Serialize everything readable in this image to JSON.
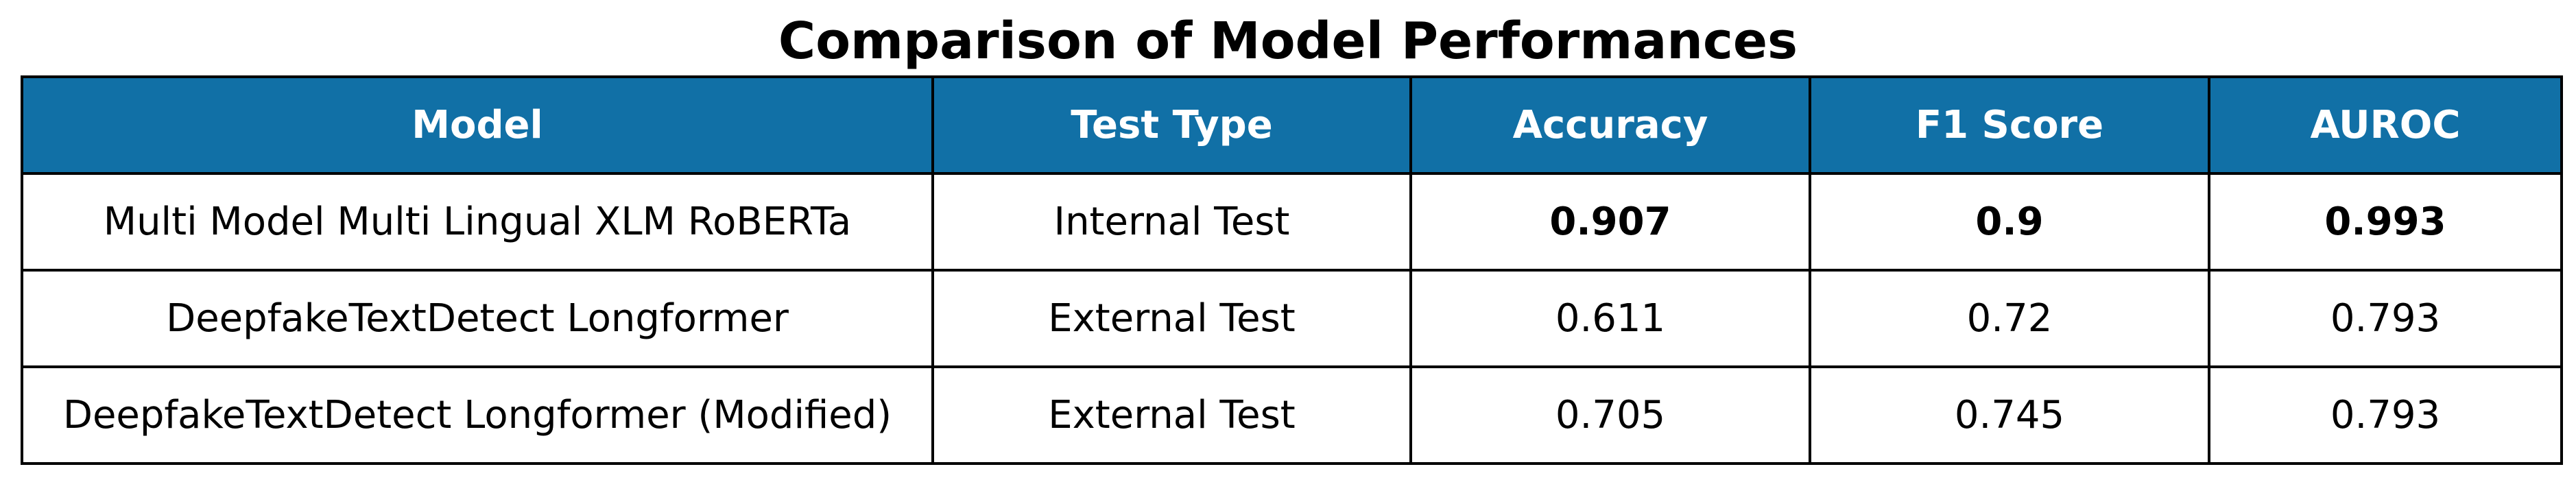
{
  "chart_data": {
    "type": "table",
    "title": "Comparison of Model Performances",
    "header_color": "#1170a6",
    "columns": [
      "Model",
      "Test Type",
      "Accuracy",
      "F1 Score",
      "AUROC"
    ],
    "rows": [
      [
        "Multi Model Multi Lingual XLM RoBERTa",
        "Internal Test",
        "0.907",
        "0.9",
        "0.993"
      ],
      [
        "DeepfakeTextDetect Longformer",
        "External Test",
        "0.611",
        "0.72",
        "0.793"
      ],
      [
        "DeepfakeTextDetect Longformer (Modified)",
        "External Test",
        "0.705",
        "0.745",
        "0.793"
      ]
    ],
    "bold_row": 0,
    "bold_columns": [
      2,
      3,
      4
    ]
  }
}
